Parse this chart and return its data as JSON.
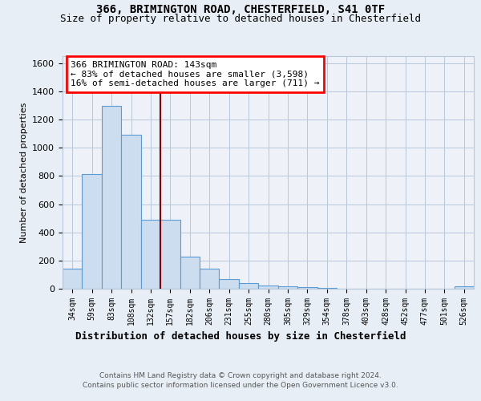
{
  "title1": "366, BRIMINGTON ROAD, CHESTERFIELD, S41 0TF",
  "title2": "Size of property relative to detached houses in Chesterfield",
  "xlabel": "Distribution of detached houses by size in Chesterfield",
  "ylabel": "Number of detached properties",
  "annotation_line1": "366 BRIMINGTON ROAD: 143sqm",
  "annotation_line2": "← 83% of detached houses are smaller (3,598)",
  "annotation_line3": "16% of semi-detached houses are larger (711) →",
  "bin_labels": [
    "34sqm",
    "59sqm",
    "83sqm",
    "108sqm",
    "132sqm",
    "157sqm",
    "182sqm",
    "206sqm",
    "231sqm",
    "255sqm",
    "280sqm",
    "305sqm",
    "329sqm",
    "354sqm",
    "378sqm",
    "403sqm",
    "428sqm",
    "452sqm",
    "477sqm",
    "501sqm",
    "526sqm"
  ],
  "bin_values": [
    140,
    815,
    1300,
    1090,
    490,
    490,
    230,
    140,
    70,
    40,
    20,
    15,
    12,
    8,
    0,
    0,
    0,
    0,
    0,
    0,
    15
  ],
  "bar_color": "#ccddf0",
  "bar_edge_color": "#5b9bd5",
  "vline_color": "#8b0000",
  "vline_x": 4.5,
  "ylim": [
    0,
    1650
  ],
  "yticks": [
    0,
    200,
    400,
    600,
    800,
    1000,
    1200,
    1400,
    1600
  ],
  "footer1": "Contains HM Land Registry data © Crown copyright and database right 2024.",
  "footer2": "Contains public sector information licensed under the Open Government Licence v3.0.",
  "background_color": "#e8eef5",
  "plot_background": "#eef2f8",
  "grid_color": "#b8c8d8"
}
